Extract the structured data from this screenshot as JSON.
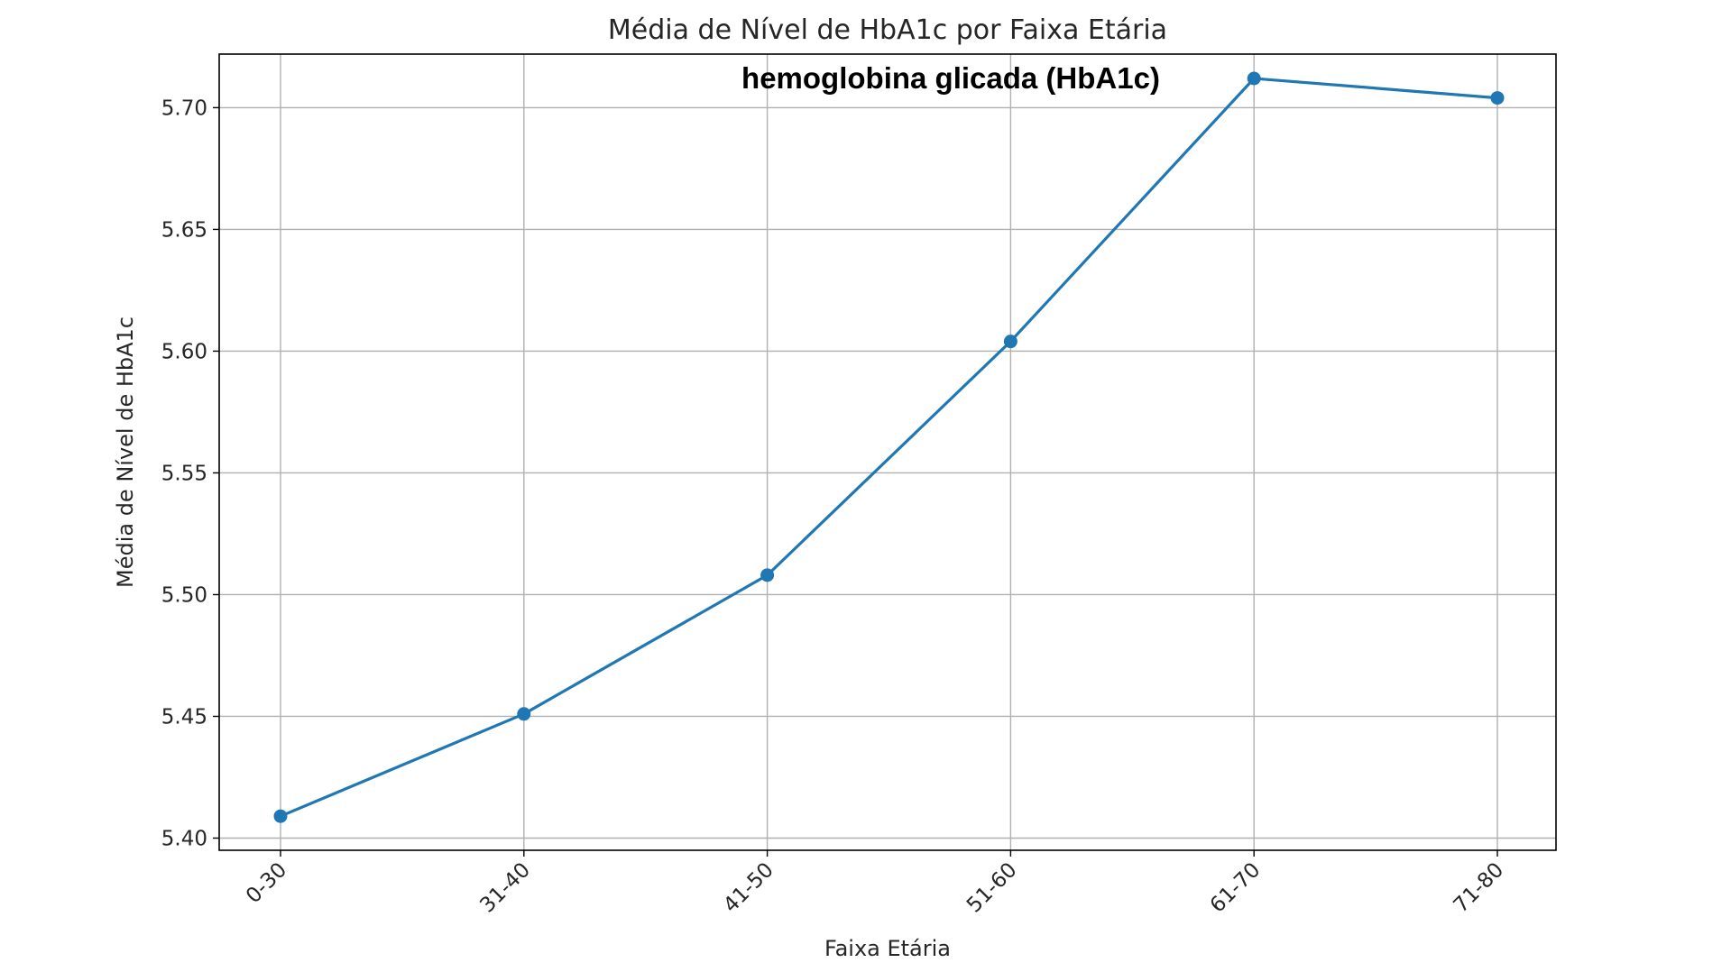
{
  "chart_data": {
    "type": "line",
    "title": "Média de Nível de HbA1c por Faixa Etária",
    "annotation": "hemoglobina glicada (HbA1c)",
    "xlabel": "Faixa Etária",
    "ylabel": "Média de Nível de HbA1c",
    "categories": [
      "0-30",
      "31-40",
      "41-50",
      "51-60",
      "61-70",
      "71-80"
    ],
    "series": [
      {
        "values": [
          5.409,
          5.451,
          5.508,
          5.604,
          5.712,
          5.704
        ],
        "color": "#1f77b4",
        "marker": "circle"
      }
    ],
    "ylim": [
      5.395,
      5.722
    ],
    "yticks": [
      "5.40",
      "5.45",
      "5.50",
      "5.55",
      "5.60",
      "5.65",
      "5.70"
    ],
    "grid": true,
    "legend": "none"
  }
}
